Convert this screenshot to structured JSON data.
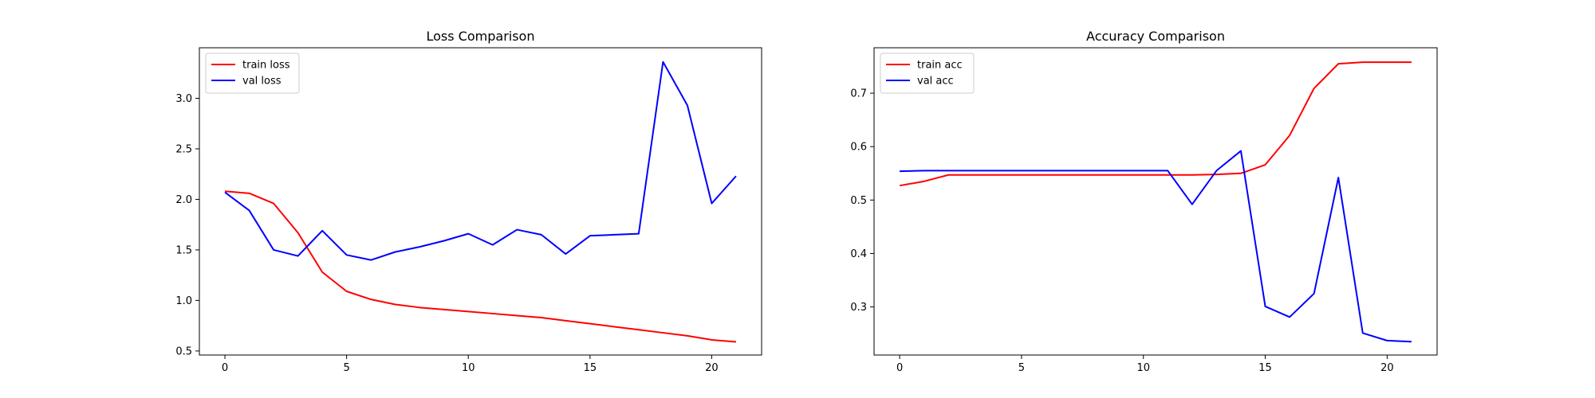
{
  "chart_data": [
    {
      "type": "line",
      "title": "Loss Comparison",
      "xlabel": "",
      "ylabel": "",
      "xlim": [
        -1.05,
        22.05
      ],
      "ylim": [
        0.46,
        3.5
      ],
      "xticks": [
        0,
        5,
        10,
        15,
        20
      ],
      "yticks": [
        0.5,
        1.0,
        1.5,
        2.0,
        2.5,
        3.0
      ],
      "ytick_labels": [
        "0.5",
        "1.0",
        "1.5",
        "2.0",
        "2.5",
        "3.0"
      ],
      "grid": false,
      "legend_position": "upper-left",
      "x": [
        0,
        1,
        2,
        3,
        4,
        5,
        6,
        7,
        8,
        9,
        10,
        11,
        12,
        13,
        14,
        15,
        16,
        17,
        18,
        19,
        20,
        21
      ],
      "series": [
        {
          "name": "train loss",
          "color": "#ff0000",
          "values": [
            2.08,
            2.06,
            1.96,
            1.67,
            1.28,
            1.09,
            1.01,
            0.96,
            0.93,
            0.91,
            0.89,
            0.87,
            0.85,
            0.83,
            0.8,
            0.77,
            0.74,
            0.71,
            0.68,
            0.65,
            0.61,
            0.59
          ]
        },
        {
          "name": "val loss",
          "color": "#0000ff",
          "values": [
            2.07,
            1.89,
            1.5,
            1.44,
            1.69,
            1.45,
            1.4,
            1.48,
            1.53,
            1.59,
            1.66,
            1.55,
            1.7,
            1.65,
            1.46,
            1.64,
            1.65,
            1.66,
            3.36,
            2.93,
            1.96,
            2.23
          ]
        }
      ]
    },
    {
      "type": "line",
      "title": "Accuracy Comparison",
      "xlabel": "",
      "ylabel": "",
      "xlim": [
        -1.05,
        22.05
      ],
      "ylim": [
        0.21,
        0.785
      ],
      "xticks": [
        0,
        5,
        10,
        15,
        20
      ],
      "yticks": [
        0.3,
        0.4,
        0.5,
        0.6,
        0.7
      ],
      "ytick_labels": [
        "0.3",
        "0.4",
        "0.5",
        "0.6",
        "0.7"
      ],
      "grid": false,
      "legend_position": "upper-left",
      "x": [
        0,
        1,
        2,
        3,
        4,
        5,
        6,
        7,
        8,
        9,
        10,
        11,
        12,
        13,
        14,
        15,
        16,
        17,
        18,
        19,
        20,
        21
      ],
      "series": [
        {
          "name": "train acc",
          "color": "#ff0000",
          "values": [
            0.527,
            0.535,
            0.547,
            0.547,
            0.547,
            0.547,
            0.547,
            0.547,
            0.547,
            0.547,
            0.547,
            0.547,
            0.547,
            0.548,
            0.55,
            0.566,
            0.621,
            0.709,
            0.755,
            0.758,
            0.758,
            0.758
          ]
        },
        {
          "name": "val acc",
          "color": "#0000ff",
          "values": [
            0.554,
            0.555,
            0.555,
            0.555,
            0.555,
            0.555,
            0.555,
            0.555,
            0.555,
            0.555,
            0.555,
            0.555,
            0.492,
            0.555,
            0.592,
            0.301,
            0.281,
            0.325,
            0.542,
            0.251,
            0.237,
            0.235
          ]
        }
      ]
    }
  ]
}
